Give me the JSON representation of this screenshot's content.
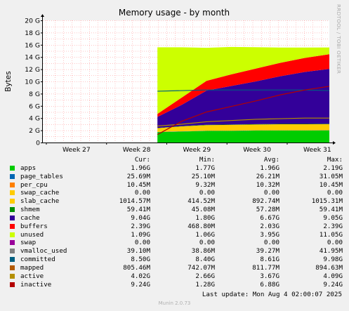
{
  "chart_data": {
    "type": "area",
    "title": "Memory usage - by month",
    "ylabel": "Bytes",
    "ylim": [
      0,
      20
    ],
    "y_unit": "GB",
    "y_ticks": [
      "0",
      "2 G",
      "4 G",
      "6 G",
      "8 G",
      "10 G",
      "12 G",
      "14 G",
      "16 G",
      "18 G",
      "20 G"
    ],
    "x_ticks": [
      "Week 27",
      "Week 28",
      "Week 29",
      "Week 30",
      "Week 31"
    ],
    "data_start_fraction": 0.4,
    "watermark": "RRDTOOL / TOBI OETIKER",
    "grid": true,
    "stack_snapshots": {
      "x": [
        "Week 28.3",
        "Week 28.6",
        "Week 29",
        "Week 29.5",
        "Week 30",
        "Week 30.5",
        "Week 31",
        "Week 31.5"
      ],
      "apps": [
        1.7,
        1.8,
        1.9,
        1.9,
        1.95,
        1.95,
        1.95,
        1.96
      ],
      "page_tables": [
        0.03,
        0.03,
        0.03,
        0.03,
        0.03,
        0.03,
        0.03,
        0.03
      ],
      "per_cpu": [
        0.01,
        0.01,
        0.01,
        0.01,
        0.01,
        0.01,
        0.01,
        0.01
      ],
      "slab_cache": [
        0.6,
        0.8,
        0.9,
        0.95,
        0.95,
        1.0,
        1.0,
        1.0
      ],
      "shmem": [
        0.05,
        0.05,
        0.06,
        0.06,
        0.06,
        0.06,
        0.06,
        0.06
      ],
      "cache": [
        1.8,
        3.5,
        5.6,
        6.3,
        7.0,
        7.8,
        8.5,
        9.0
      ],
      "buffers": [
        0.5,
        1.2,
        1.6,
        1.9,
        2.1,
        2.2,
        2.3,
        2.4
      ],
      "unused": [
        10.9,
        8.2,
        5.4,
        4.5,
        3.5,
        2.5,
        1.7,
        1.1
      ],
      "inactive": [
        1.3,
        3.5,
        5.0,
        5.9,
        6.8,
        7.8,
        8.6,
        9.2
      ],
      "committed": [
        8.4,
        8.5,
        8.6,
        8.6,
        8.6,
        8.6,
        8.6,
        8.5
      ],
      "active": [
        2.7,
        3.0,
        3.4,
        3.6,
        3.8,
        3.9,
        4.0,
        4.0
      ]
    }
  },
  "legend": {
    "headers": {
      "cur": "Cur:",
      "min": "Min:",
      "avg": "Avg:",
      "max": "Max:"
    },
    "rows": [
      {
        "name": "apps",
        "color": "#00cc00",
        "cur": "1.96G",
        "min": "1.77G",
        "avg": "1.96G",
        "max": "2.19G"
      },
      {
        "name": "page_tables",
        "color": "#0066b3",
        "cur": "25.69M",
        "min": "25.10M",
        "avg": "26.21M",
        "max": "31.05M"
      },
      {
        "name": "per_cpu",
        "color": "#ff8000",
        "cur": "10.45M",
        "min": "9.32M",
        "avg": "10.32M",
        "max": "10.45M"
      },
      {
        "name": "swap_cache",
        "color": "#ffcc00",
        "cur": "0.00",
        "min": "0.00",
        "avg": "0.00",
        "max": "0.00"
      },
      {
        "name": "slab_cache",
        "color": "#ffcc00",
        "cur": "1014.57M",
        "min": "414.52M",
        "avg": "892.74M",
        "max": "1015.31M"
      },
      {
        "name": "shmem",
        "color": "#008f00",
        "cur": "59.41M",
        "min": "45.08M",
        "avg": "57.28M",
        "max": "59.41M"
      },
      {
        "name": "cache",
        "color": "#330099",
        "cur": "9.04G",
        "min": "1.80G",
        "avg": "6.67G",
        "max": "9.05G"
      },
      {
        "name": "buffers",
        "color": "#ff0000",
        "cur": "2.39G",
        "min": "468.80M",
        "avg": "2.03G",
        "max": "2.39G"
      },
      {
        "name": "unused",
        "color": "#ccff00",
        "cur": "1.09G",
        "min": "1.06G",
        "avg": "3.95G",
        "max": "11.05G"
      },
      {
        "name": "swap",
        "color": "#990099",
        "cur": "0.00",
        "min": "0.00",
        "avg": "0.00",
        "max": "0.00"
      },
      {
        "name": "vmalloc_used",
        "color": "#808080",
        "cur": "39.10M",
        "min": "38.86M",
        "avg": "39.27M",
        "max": "41.95M"
      },
      {
        "name": "committed",
        "color": "#005e80",
        "cur": "8.50G",
        "min": "8.40G",
        "avg": "8.61G",
        "max": "9.98G"
      },
      {
        "name": "mapped",
        "color": "#b35a00",
        "cur": "805.46M",
        "min": "742.07M",
        "avg": "811.77M",
        "max": "894.63M"
      },
      {
        "name": "active",
        "color": "#b38f00",
        "cur": "4.02G",
        "min": "2.66G",
        "avg": "3.67G",
        "max": "4.09G"
      },
      {
        "name": "inactive",
        "color": "#b30000",
        "cur": "9.24G",
        "min": "1.28G",
        "avg": "6.88G",
        "max": "9.24G"
      }
    ]
  },
  "footer": {
    "last_update": "Last update: Mon Aug  4 02:00:07 2025",
    "munin": "Munin 2.0.73"
  }
}
